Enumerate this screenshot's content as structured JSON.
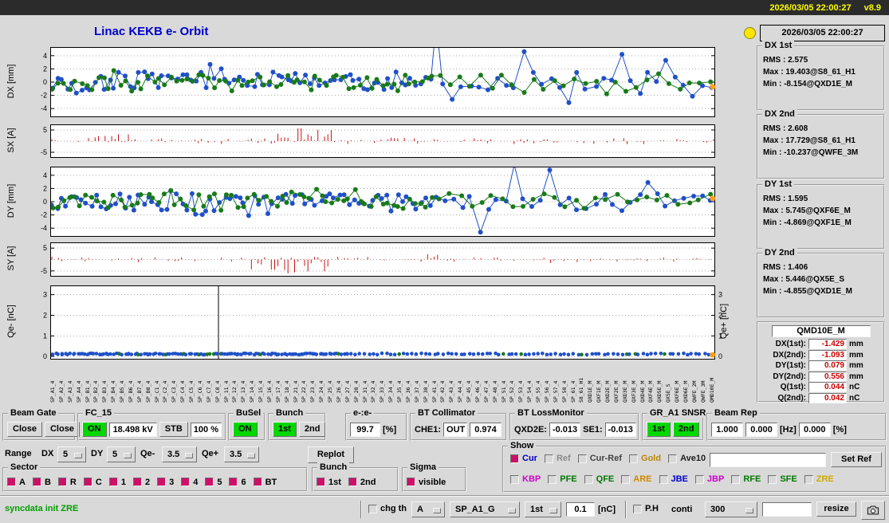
{
  "window": {
    "datetime": "2026/03/05 22:00:27",
    "version": "v8.9"
  },
  "header": {
    "title": "Linac KEKB e- Orbit"
  },
  "status": {
    "timestamp": "2026/03/05 22:00:27"
  },
  "colors": {
    "title_blue": "#0000cc",
    "titlebar_yellow": "#ffff00",
    "indicator_yellow": "#ffe600",
    "on_green": "#00d800",
    "pink": "#ffc0cb",
    "value_red": "#cc0000",
    "sync_green": "#00a000",
    "checkbox_on": "#cc1166",
    "series_blue": "#2050c8",
    "series_green": "#1a7a1a",
    "series_red": "#cc1111",
    "marker_orange": "#ffa020"
  },
  "stats": [
    {
      "title": "DX 1st",
      "rms": "RMS : 2.575",
      "max": "Max : 19.403@S8_61_H1",
      "min": "Min : -8.154@QXD1E_M"
    },
    {
      "title": "DX 2nd",
      "rms": "RMS : 2.608",
      "max": "Max : 17.729@S8_61_H1",
      "min": "Min : -10.237@QWFE_3M"
    },
    {
      "title": "DY 1st",
      "rms": "RMS : 1.595",
      "max": "Max : 5.745@QXF6E_M",
      "min": "Min : -4.869@QXF1E_M"
    },
    {
      "title": "DY 2nd",
      "rms": "RMS : 1.406",
      "max": "Max : 5.446@QX5E_S",
      "min": "Min : -4.855@QXD1E_M"
    }
  ],
  "monitor": {
    "title": "QMD10E_M",
    "rows": [
      {
        "label": "DX(1st):",
        "value": "-1.429",
        "unit": "mm"
      },
      {
        "label": "DX(2nd):",
        "value": "-1.093",
        "unit": "mm"
      },
      {
        "label": "DY(1st):",
        "value": "0.079",
        "unit": "mm"
      },
      {
        "label": "DY(2nd):",
        "value": "0.556",
        "unit": "mm"
      },
      {
        "label": "Q(1st):",
        "value": "0.044",
        "unit": "nC"
      },
      {
        "label": "Q(2nd):",
        "value": "0.042",
        "unit": "nC"
      }
    ]
  },
  "chart_data": [
    {
      "id": "dx",
      "type": "scatter-line",
      "ylabel": "DX [mm]",
      "ylim": [
        -5.3,
        5.3
      ],
      "yticks": [
        4,
        2,
        0,
        -2,
        -4
      ],
      "xsplit": [
        0.58,
        0.72
      ],
      "series": [
        {
          "name": "bunch-1st",
          "color": "#2050c8",
          "seed": 101,
          "n": 112,
          "mean": 0.15,
          "amp": 1.45
        },
        {
          "name": "bunch-2nd",
          "color": "#1a7a1a",
          "seed": 202,
          "n": 96,
          "mean": -0.15,
          "amp": 1.25
        }
      ],
      "spikes": [
        [
          0.584,
          9
        ],
        [
          0.6,
          -2.6
        ],
        [
          0.717,
          4.6
        ],
        [
          0.78,
          -3.1
        ],
        [
          0.862,
          4.2
        ],
        [
          0.93,
          3.3
        ]
      ],
      "end_marker": {
        "x": 0.996,
        "y": -0.7,
        "color": "#ffa020"
      }
    },
    {
      "id": "sx",
      "type": "spikes",
      "ylabel": "SX [A]",
      "ylim": [
        -7.5,
        7.5
      ],
      "yticks": [
        5,
        -5
      ],
      "color": "#cc1111",
      "seed": 303,
      "n": 200,
      "amp": 1.1,
      "clusters": [
        [
          0.055,
          0.13,
          3.0
        ],
        [
          0.33,
          0.43,
          6.2
        ],
        [
          0.5,
          0.535,
          2.2
        ]
      ]
    },
    {
      "id": "dy",
      "type": "scatter-line",
      "ylabel": "DY [mm]",
      "ylim": [
        -5.3,
        5.3
      ],
      "yticks": [
        4,
        2,
        0,
        -2,
        -4
      ],
      "xsplit": [
        0.58,
        0.72
      ],
      "series": [
        {
          "name": "bunch-1st",
          "color": "#2050c8",
          "seed": 404,
          "n": 112,
          "mean": -0.1,
          "amp": 1.35
        },
        {
          "name": "bunch-2nd",
          "color": "#1a7a1a",
          "seed": 505,
          "n": 96,
          "mean": 0.1,
          "amp": 1.15
        }
      ],
      "spikes": [
        [
          0.644,
          -4.6
        ],
        [
          0.7,
          5.6
        ],
        [
          0.752,
          4.8
        ],
        [
          0.9,
          2.9
        ]
      ],
      "end_marker": {
        "x": 0.996,
        "y": 0.5,
        "color": "#ffa020"
      }
    },
    {
      "id": "sy",
      "type": "spikes",
      "ylabel": "SY [A]",
      "ylim": [
        -7.5,
        7.5
      ],
      "yticks": [
        5,
        -5
      ],
      "color": "#cc1111",
      "seed": 606,
      "n": 200,
      "amp": 1.0,
      "clusters": [
        [
          0.3,
          0.42,
          -5.8
        ],
        [
          0.555,
          0.6,
          2.4
        ],
        [
          0.75,
          0.78,
          -2.0
        ]
      ]
    },
    {
      "id": "qe",
      "type": "dots",
      "ylabel": "Qe- [nC]",
      "ylabel_right": "Qe+ [nC]",
      "ylim": [
        -0.15,
        3.45
      ],
      "yticks": [
        0,
        1,
        2,
        3
      ],
      "seed": 707,
      "n": 210,
      "base": 0.12,
      "xsplit": [
        0.45,
        0.6
      ],
      "color": "#2050c8",
      "alt_color": "#1a7a1a",
      "vline_x": 0.253,
      "end_marker": {
        "x": 0.996,
        "y": 0.08,
        "color": "#ffa020"
      }
    }
  ],
  "bpm_names": [
    "SP_A1_4",
    "SP_A2_4",
    "SP_A3_4",
    "SP_A4_4",
    "SP_B1_4",
    "SP_B2_4",
    "SP_B3_4",
    "SP_B4_4",
    "SP_B5_4",
    "SP_B6_4",
    "SP_B7_4",
    "SP_B8_4",
    "SP_C1_4",
    "SP_C2_4",
    "SP_C3_4",
    "SP_C4_4",
    "SP_C5_4",
    "SP_C6_4",
    "SP_C7_4",
    "SP_C8_4",
    "SP_11_4",
    "SP_12_4",
    "SP_13_4",
    "SP_14_4",
    "SP_15_4",
    "SP_16_4",
    "SP_17_4",
    "SP_18_4",
    "SP_21_4",
    "SP_22_4",
    "SP_23_4",
    "SP_24_4",
    "SP_25_4",
    "SP_26_4",
    "SP_27_4",
    "SP_28_4",
    "SP_31_4",
    "SP_32_4",
    "SP_33_4",
    "SP_34_4",
    "SP_35_4",
    "SP_36_4",
    "SP_37_4",
    "SP_38_4",
    "SP_41_4",
    "SP_42_4",
    "SP_43_4",
    "SP_44_4",
    "SP_45_4",
    "SP_46_4",
    "SP_47_4",
    "SP_48_4",
    "SP_51_4",
    "SP_52_4",
    "SP_53_4",
    "SP_54_4",
    "SP_55_4",
    "SP_56_4",
    "SP_57_4",
    "SP_58_4",
    "SP_61_4",
    "S8_61_H1",
    "QXD1E_M",
    "QXF1E_M",
    "QXD2E_M",
    "QXF2E_M",
    "QXD3E_M",
    "QXF3E_M",
    "QXD4E_M",
    "QXF4E_M",
    "QXD5E_M",
    "QX5E_S",
    "QXF6E_M",
    "QXD6E_M",
    "QWFE_2M",
    "QWFE_3M",
    "QMD10E_M"
  ],
  "controls": {
    "beam_gate": {
      "label": "Beam Gate",
      "b1": "Close",
      "b2": "Close"
    },
    "fc15": {
      "label": "FC_15",
      "on": "ON",
      "kv": "18.498 kV",
      "stb": "STB",
      "pct": "100 %"
    },
    "busel": {
      "label": "BuSel",
      "on": "ON"
    },
    "bunch_sel": {
      "label": "Bunch",
      "b1": "1st",
      "b2": "2nd"
    },
    "ee": {
      "label": "e-:e-",
      "value": "99.7",
      "unit": "[%]"
    },
    "bt_col": {
      "label": "BT Collimator",
      "che1": "CHE1:",
      "v1": "OUT",
      "v2": "0.974"
    },
    "bt_loss": {
      "label": "BT LossMonitor",
      "l1": "QXD2E:",
      "v1": "-0.013",
      "l2": "SE1:",
      "v2": "-0.013"
    },
    "gr": {
      "label": "GR_A1 SNSR",
      "b1": "1st",
      "b2": "2nd"
    },
    "rep": {
      "label": "Beam Rep",
      "v1": "1.000",
      "v2": "0.000",
      "hz": "[Hz]",
      "v3": "0.000",
      "pct": "[%]"
    },
    "range": {
      "label": "Range",
      "dx_l": "DX",
      "dx": "5",
      "dy_l": "DY",
      "dy": "5",
      "qm_l": "Qe-",
      "qm": "3.5",
      "qp_l": "Qe+",
      "qp": "3.5",
      "replot": "Replot"
    },
    "sector": {
      "label": "Sector",
      "items": [
        {
          "label": "A",
          "checked": true
        },
        {
          "label": "B",
          "checked": true
        },
        {
          "label": "R",
          "checked": true
        },
        {
          "label": "C",
          "checked": true
        },
        {
          "label": "1",
          "checked": true
        },
        {
          "label": "2",
          "checked": true
        },
        {
          "label": "3",
          "checked": true
        },
        {
          "label": "4",
          "checked": true
        },
        {
          "label": "5",
          "checked": true
        },
        {
          "label": "6",
          "checked": true
        },
        {
          "label": "BT",
          "checked": true
        }
      ]
    },
    "bunch_view": {
      "label": "Bunch",
      "items": [
        {
          "label": "1st",
          "checked": true
        },
        {
          "label": "2nd",
          "checked": true
        }
      ]
    },
    "sigma": {
      "label": "Sigma",
      "items": [
        {
          "label": "visible",
          "checked": true
        }
      ]
    },
    "show": {
      "label": "Show",
      "entry": "",
      "set_ref": "Set Ref",
      "row1": [
        {
          "label": "Cur",
          "color": "#0000cc",
          "checked": true
        },
        {
          "label": "Ref",
          "color": "#8a8a8a"
        },
        {
          "label": "Cur-Ref",
          "color": "#444444"
        },
        {
          "label": "Gold",
          "color": "#b8860b"
        },
        {
          "label": "Ave10",
          "color": "#222222"
        }
      ],
      "row2": [
        {
          "label": "KBP",
          "color": "#cc00cc"
        },
        {
          "label": "PFE",
          "color": "#007700"
        },
        {
          "label": "QFE",
          "color": "#007700"
        },
        {
          "label": "ARE",
          "color": "#cc8800"
        },
        {
          "label": "JBE",
          "color": "#0000cc"
        },
        {
          "label": "JBP",
          "color": "#cc00cc"
        },
        {
          "label": "RFE",
          "color": "#007700"
        },
        {
          "label": "SFE",
          "color": "#007700"
        },
        {
          "label": "ZRE",
          "color": "#ccaa00"
        }
      ]
    },
    "bottom": {
      "sync": "syncdata init ZRE",
      "chg_th": "chg th",
      "opt_a": "A",
      "opt_sp": "SP_A1_G",
      "opt_1st": "1st",
      "thr": "0.1",
      "thr_unit": "[nC]",
      "ph": "P.H",
      "conti": "conti",
      "opt_300": "300",
      "entry": "",
      "resize": "resize"
    }
  }
}
